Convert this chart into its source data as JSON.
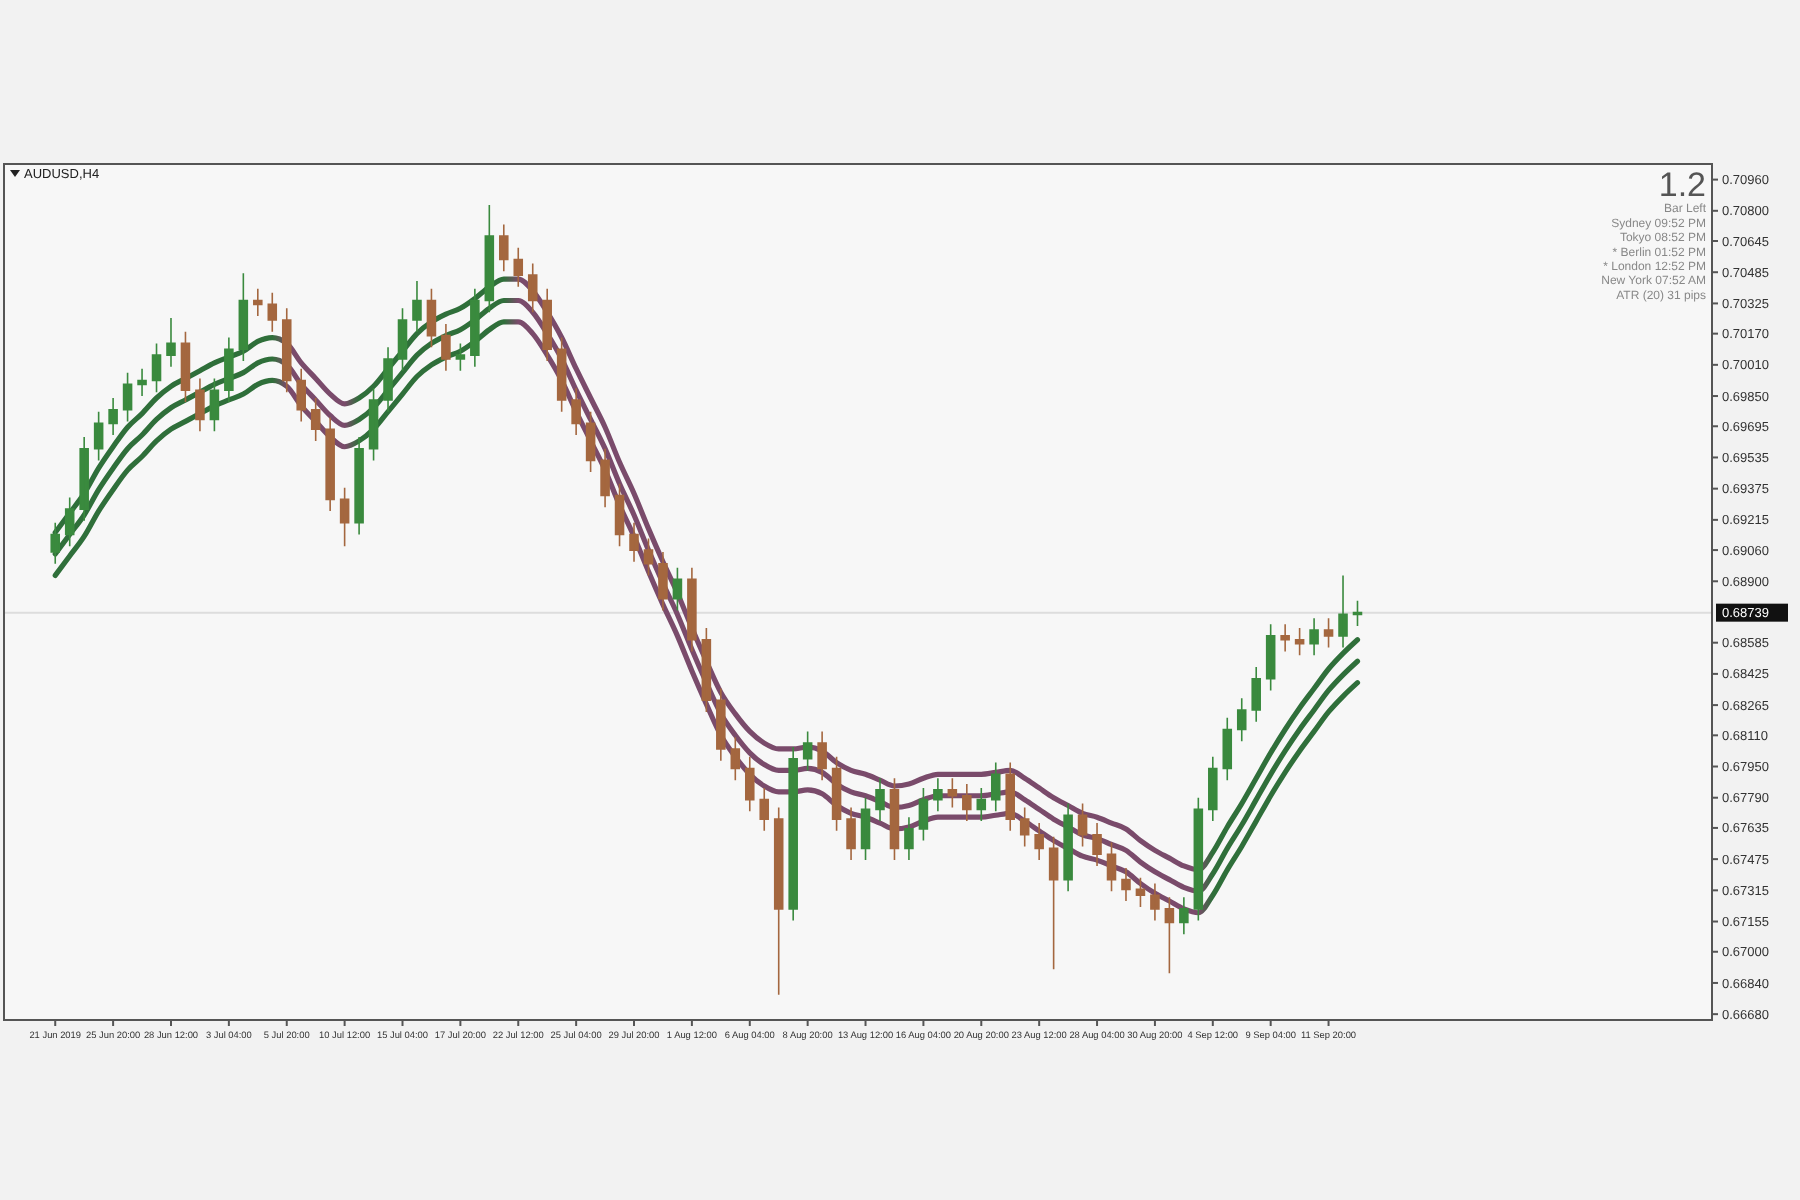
{
  "chart_data": {
    "type": "candlestick",
    "title": "AUDUSD,H4",
    "annotations": [
      "1.2",
      "Bar Left",
      "Sydney 09:52 PM",
      "Tokyo 08:52 PM",
      "* Berlin 01:52 PM",
      "* London 12:52 PM",
      "New York 07:52 AM",
      "ATR (20) 31 pips"
    ],
    "categories": [
      "21 Jun 2019",
      null,
      null,
      null,
      "25 Jun 20:00",
      null,
      null,
      null,
      "28 Jun 12:00",
      null,
      null,
      null,
      "3 Jul 04:00",
      null,
      null,
      null,
      "5 Jul 20:00",
      null,
      null,
      null,
      "10 Jul 12:00",
      null,
      null,
      null,
      "15 Jul 04:00",
      null,
      null,
      null,
      "17 Jul 20:00",
      null,
      null,
      null,
      "22 Jul 12:00",
      null,
      null,
      null,
      "25 Jul 04:00",
      null,
      null,
      null,
      "29 Jul 20:00",
      null,
      null,
      null,
      "1 Aug 12:00",
      null,
      null,
      null,
      "6 Aug 04:00",
      null,
      null,
      null,
      "8 Aug 20:00",
      null,
      null,
      null,
      "13 Aug 12:00",
      null,
      null,
      null,
      "16 Aug 04:00",
      null,
      null,
      null,
      "20 Aug 20:00",
      null,
      null,
      null,
      "23 Aug 12:00",
      null,
      null,
      null,
      "28 Aug 04:00",
      null,
      null,
      null,
      "30 Aug 20:00",
      null,
      null,
      null,
      "4 Sep 12:00",
      null,
      null,
      null,
      "9 Sep 04:00",
      null,
      null,
      null,
      "11 Sep 20:00",
      null,
      null,
      null,
      null,
      null,
      null,
      null,
      null,
      null,
      null,
      null,
      null,
      null,
      null,
      null,
      null,
      null,
      null,
      null,
      null,
      null,
      null,
      null,
      null,
      null,
      null
    ],
    "ylim": [
      0.6665,
      0.7104
    ],
    "yticks": [
      {
        "value": 0.7096,
        "label": "0.70960"
      },
      {
        "value": 0.708,
        "label": "0.70800"
      },
      {
        "value": 0.70645,
        "label": "0.70645"
      },
      {
        "value": 0.70485,
        "label": "0.70485"
      },
      {
        "value": 0.70325,
        "label": "0.70325"
      },
      {
        "value": 0.7017,
        "label": "0.70170"
      },
      {
        "value": 0.7001,
        "label": "0.70010"
      },
      {
        "value": 0.6985,
        "label": "0.69850"
      },
      {
        "value": 0.69695,
        "label": "0.69695"
      },
      {
        "value": 0.69535,
        "label": "0.69535"
      },
      {
        "value": 0.69375,
        "label": "0.69375"
      },
      {
        "value": 0.69215,
        "label": "0.69215"
      },
      {
        "value": 0.6906,
        "label": "0.69060"
      },
      {
        "value": 0.689,
        "label": "0.68900"
      },
      {
        "value": 0.68585,
        "label": "0.68585"
      },
      {
        "value": 0.68425,
        "label": "0.68425"
      },
      {
        "value": 0.68265,
        "label": "0.68265"
      },
      {
        "value": 0.6811,
        "label": "0.68110"
      },
      {
        "value": 0.6795,
        "label": "0.67950"
      },
      {
        "value": 0.6779,
        "label": "0.67790"
      },
      {
        "value": 0.67635,
        "label": "0.67635"
      },
      {
        "value": 0.67475,
        "label": "0.67475"
      },
      {
        "value": 0.67315,
        "label": "0.67315"
      },
      {
        "value": 0.67155,
        "label": "0.67155"
      },
      {
        "value": 0.67,
        "label": "0.67000"
      },
      {
        "value": 0.6684,
        "label": "0.66840"
      },
      {
        "value": 0.6668,
        "label": "0.66680"
      }
    ],
    "grid": false,
    "legend": false,
    "ref_lines": [
      {
        "axis": "y",
        "value": 0.68739,
        "label": "0.68739",
        "color": "#dddddd"
      }
    ],
    "series": [
      {
        "ohlc": [
          [
            0.6905,
            0.692,
            0.6899,
            0.6914
          ],
          [
            0.6914,
            0.6933,
            0.6908,
            0.6927
          ],
          [
            0.6927,
            0.6964,
            0.6921,
            0.6958
          ],
          [
            0.6958,
            0.6977,
            0.6952,
            0.6971
          ],
          [
            0.6971,
            0.6984,
            0.6965,
            0.6978
          ],
          [
            0.6978,
            0.6997,
            0.6972,
            0.6991
          ],
          [
            0.6991,
            0.6999,
            0.6985,
            0.6993
          ],
          [
            0.6993,
            0.7012,
            0.6987,
            0.7006
          ],
          [
            0.7006,
            0.7025,
            0.7,
            0.7012
          ],
          [
            0.7012,
            0.7018,
            0.6982,
            0.6988
          ],
          [
            0.6988,
            0.6994,
            0.6967,
            0.6973
          ],
          [
            0.6973,
            0.6994,
            0.6967,
            0.6988
          ],
          [
            0.6988,
            0.7015,
            0.6982,
            0.7009
          ],
          [
            0.7009,
            0.7048,
            0.7003,
            0.7034
          ],
          [
            0.7034,
            0.704,
            0.7026,
            0.7032
          ],
          [
            0.7032,
            0.7038,
            0.7018,
            0.7024
          ],
          [
            0.7024,
            0.703,
            0.6987,
            0.6993
          ],
          [
            0.6993,
            0.6999,
            0.6972,
            0.6978
          ],
          [
            0.6978,
            0.6984,
            0.6962,
            0.6968
          ],
          [
            0.6968,
            0.6974,
            0.6926,
            0.6932
          ],
          [
            0.6932,
            0.6938,
            0.6908,
            0.692
          ],
          [
            0.692,
            0.6964,
            0.6914,
            0.6958
          ],
          [
            0.6958,
            0.6989,
            0.6952,
            0.6983
          ],
          [
            0.6983,
            0.701,
            0.6977,
            0.7004
          ],
          [
            0.7004,
            0.703,
            0.6998,
            0.7024
          ],
          [
            0.7024,
            0.7044,
            0.7018,
            0.7034
          ],
          [
            0.7034,
            0.704,
            0.701,
            0.7016
          ],
          [
            0.7016,
            0.7022,
            0.6998,
            0.7004
          ],
          [
            0.7004,
            0.7012,
            0.6998,
            0.7006
          ],
          [
            0.7006,
            0.704,
            0.7,
            0.7034
          ],
          [
            0.7034,
            0.7083,
            0.7028,
            0.7067
          ],
          [
            0.7067,
            0.7073,
            0.7049,
            0.7055
          ],
          [
            0.7055,
            0.7061,
            0.7041,
            0.7047
          ],
          [
            0.7047,
            0.7053,
            0.7028,
            0.7034
          ],
          [
            0.7034,
            0.704,
            0.7003,
            0.7009
          ],
          [
            0.7009,
            0.7015,
            0.6977,
            0.6983
          ],
          [
            0.6983,
            0.6989,
            0.6965,
            0.6971
          ],
          [
            0.6971,
            0.6977,
            0.6946,
            0.6952
          ],
          [
            0.6952,
            0.6958,
            0.6928,
            0.6934
          ],
          [
            0.6934,
            0.694,
            0.6908,
            0.6914
          ],
          [
            0.6914,
            0.692,
            0.69,
            0.6906
          ],
          [
            0.6906,
            0.6912,
            0.6893,
            0.6899
          ],
          [
            0.6899,
            0.6905,
            0.6875,
            0.6881
          ],
          [
            0.6881,
            0.6897,
            0.6875,
            0.6891
          ],
          [
            0.6891,
            0.6897,
            0.6854,
            0.686
          ],
          [
            0.686,
            0.6866,
            0.6823,
            0.6829
          ],
          [
            0.6829,
            0.6835,
            0.6798,
            0.6804
          ],
          [
            0.6804,
            0.681,
            0.6788,
            0.6794
          ],
          [
            0.6794,
            0.68,
            0.6772,
            0.6778
          ],
          [
            0.6778,
            0.6784,
            0.6762,
            0.6768
          ],
          [
            0.6768,
            0.6774,
            0.6678,
            0.6722
          ],
          [
            0.6722,
            0.6805,
            0.6716,
            0.6799
          ],
          [
            0.6799,
            0.6813,
            0.6793,
            0.6807
          ],
          [
            0.6807,
            0.6813,
            0.6788,
            0.6794
          ],
          [
            0.6794,
            0.68,
            0.6762,
            0.6768
          ],
          [
            0.6768,
            0.6774,
            0.6747,
            0.6753
          ],
          [
            0.6753,
            0.6779,
            0.6747,
            0.6773
          ],
          [
            0.6773,
            0.6789,
            0.6767,
            0.6783
          ],
          [
            0.6783,
            0.6789,
            0.6747,
            0.6753
          ],
          [
            0.6753,
            0.6769,
            0.6747,
            0.6763
          ],
          [
            0.6763,
            0.6784,
            0.6757,
            0.6778
          ],
          [
            0.6778,
            0.6789,
            0.6772,
            0.6783
          ],
          [
            0.6783,
            0.6789,
            0.6774,
            0.678
          ],
          [
            0.678,
            0.6786,
            0.6767,
            0.6773
          ],
          [
            0.6773,
            0.6784,
            0.6767,
            0.6778
          ],
          [
            0.6778,
            0.6797,
            0.6772,
            0.6791
          ],
          [
            0.6791,
            0.6797,
            0.6762,
            0.6768
          ],
          [
            0.6768,
            0.6774,
            0.6754,
            0.676
          ],
          [
            0.676,
            0.6766,
            0.6747,
            0.6753
          ],
          [
            0.6753,
            0.6759,
            0.6691,
            0.6737
          ],
          [
            0.6737,
            0.6776,
            0.6731,
            0.677
          ],
          [
            0.677,
            0.6776,
            0.6754,
            0.676
          ],
          [
            0.676,
            0.6766,
            0.6744,
            0.675
          ],
          [
            0.675,
            0.6756,
            0.6731,
            0.6737
          ],
          [
            0.6737,
            0.6743,
            0.6726,
            0.6732
          ],
          [
            0.6732,
            0.6738,
            0.6723,
            0.6729
          ],
          [
            0.6729,
            0.6735,
            0.6716,
            0.6722
          ],
          [
            0.6722,
            0.6728,
            0.6689,
            0.6715
          ],
          [
            0.6715,
            0.6728,
            0.6709,
            0.6722
          ],
          [
            0.6722,
            0.6779,
            0.6716,
            0.6773
          ],
          [
            0.6773,
            0.68,
            0.6767,
            0.6794
          ],
          [
            0.6794,
            0.682,
            0.6788,
            0.6814
          ],
          [
            0.6814,
            0.683,
            0.6808,
            0.6824
          ],
          [
            0.6824,
            0.6846,
            0.6818,
            0.684
          ],
          [
            0.684,
            0.6868,
            0.6834,
            0.6862
          ],
          [
            0.6862,
            0.6868,
            0.6854,
            0.686
          ],
          [
            0.686,
            0.6866,
            0.6852,
            0.6858
          ],
          [
            0.6858,
            0.6871,
            0.6852,
            0.6865
          ],
          [
            0.6865,
            0.6871,
            0.6856,
            0.6862
          ],
          [
            0.6862,
            0.6893,
            0.6856,
            0.6873
          ],
          [
            0.6873,
            0.688,
            0.6867,
            0.6874
          ],
          null,
          null,
          null,
          null,
          null,
          null,
          null,
          null,
          null,
          null,
          null,
          null,
          null,
          null,
          null,
          null,
          null,
          null,
          null,
          null,
          null,
          null,
          null,
          null
        ],
        "colors": [
          "#3a8a3e",
          "#3a8a3e",
          "#3a8a3e",
          "#3a8a3e",
          "#3a8a3e",
          "#3a8a3e",
          "#3a8a3e",
          "#3a8a3e",
          "#3a8a3e",
          "#a4673f",
          "#a4673f",
          "#3a8a3e",
          "#3a8a3e",
          "#3a8a3e",
          "#a4673f",
          "#a4673f",
          "#a4673f",
          "#a4673f",
          "#a4673f",
          "#a4673f",
          "#a4673f",
          "#3a8a3e",
          "#3a8a3e",
          "#3a8a3e",
          "#3a8a3e",
          "#3a8a3e",
          "#a4673f",
          "#a4673f",
          "#3a8a3e",
          "#3a8a3e",
          "#3a8a3e",
          "#a4673f",
          "#a4673f",
          "#a4673f",
          "#a4673f",
          "#a4673f",
          "#a4673f",
          "#a4673f",
          "#a4673f",
          "#a4673f",
          "#a4673f",
          "#a4673f",
          "#a4673f",
          "#3a8a3e",
          "#a4673f",
          "#a4673f",
          "#a4673f",
          "#a4673f",
          "#a4673f",
          "#a4673f",
          "#a4673f",
          "#3a8a3e",
          "#3a8a3e",
          "#a4673f",
          "#a4673f",
          "#a4673f",
          "#3a8a3e",
          "#3a8a3e",
          "#a4673f",
          "#3a8a3e",
          "#3a8a3e",
          "#3a8a3e",
          "#a4673f",
          "#a4673f",
          "#3a8a3e",
          "#3a8a3e",
          "#a4673f",
          "#a4673f",
          "#a4673f",
          "#a4673f",
          "#3a8a3e",
          "#a4673f",
          "#a4673f",
          "#a4673f",
          "#a4673f",
          "#a4673f",
          "#a4673f",
          "#a4673f",
          "#3a8a3e",
          "#3a8a3e",
          "#3a8a3e",
          "#3a8a3e",
          "#3a8a3e",
          "#3a8a3e",
          "#3a8a3e",
          "#a4673f",
          "#a4673f",
          "#3a8a3e",
          "#a4673f",
          "#3a8a3e",
          "#3a8a3e",
          null,
          null,
          null,
          null,
          null,
          null,
          null,
          null,
          null,
          null,
          null,
          null,
          null,
          null,
          null,
          null,
          null,
          null,
          null,
          null,
          null,
          null,
          null,
          null
        ]
      },
      {
        "type": "line",
        "values": [
          0.6915,
          0.6925,
          0.6935,
          0.6948,
          0.6959,
          0.6969,
          0.6976,
          0.6984,
          0.699,
          0.6994,
          0.6998,
          0.7002,
          0.7005,
          0.7008,
          0.7013,
          0.7015,
          0.7012,
          0.7002,
          0.6994,
          0.6986,
          0.6981,
          0.6984,
          0.699,
          0.6999,
          0.7008,
          0.7017,
          0.7023,
          0.7027,
          0.703,
          0.7035,
          0.7041,
          0.7045,
          0.7045,
          0.7039,
          0.7028,
          0.7015,
          0.6999,
          0.6984,
          0.6969,
          0.6951,
          0.6935,
          0.6917,
          0.69,
          0.6884,
          0.6866,
          0.6849,
          0.6833,
          0.6822,
          0.6813,
          0.6807,
          0.6804,
          0.6804,
          0.6805,
          0.6803,
          0.6797,
          0.6793,
          0.6791,
          0.6788,
          0.6785,
          0.6786,
          0.6789,
          0.6791,
          0.6791,
          0.6791,
          0.6791,
          0.6792,
          0.6793,
          0.6789,
          0.6784,
          0.6779,
          0.6775,
          0.6771,
          0.6769,
          0.6766,
          0.6763,
          0.6757,
          0.6752,
          0.6748,
          0.6744,
          0.6742,
          0.6751,
          0.6764,
          0.6776,
          0.6789,
          0.6802,
          0.6814,
          0.6825,
          0.6835,
          0.6845,
          0.6853,
          0.686,
          null,
          null,
          null,
          null,
          null,
          null,
          null,
          null,
          null,
          null,
          null,
          null,
          null,
          null,
          null,
          null,
          null,
          null,
          null,
          null,
          null,
          null,
          null,
          null
        ],
        "colors": [
          "#2f6f3a",
          "#2f6f3a",
          "#2f6f3a",
          "#2f6f3a",
          "#2f6f3a",
          "#2f6f3a",
          "#2f6f3a",
          "#2f6f3a",
          "#2f6f3a",
          "#2f6f3a",
          "#2f6f3a",
          "#2f6f3a",
          "#2f6f3a",
          "#2f6f3a",
          "#2f6f3a",
          "#2f6f3a",
          "#7a4b6b",
          "#7a4b6b",
          "#7a4b6b",
          "#7a4b6b",
          "#7a4b6b",
          "#2f6f3a",
          "#2f6f3a",
          "#2f6f3a",
          "#2f6f3a",
          "#2f6f3a",
          "#2f6f3a",
          "#2f6f3a",
          "#2f6f3a",
          "#2f6f3a",
          "#2f6f3a",
          "#2f6f3a",
          "#7a4b6b",
          "#7a4b6b",
          "#7a4b6b",
          "#7a4b6b",
          "#7a4b6b",
          "#7a4b6b",
          "#7a4b6b",
          "#7a4b6b",
          "#7a4b6b",
          "#7a4b6b",
          "#7a4b6b",
          "#7a4b6b",
          "#7a4b6b",
          "#7a4b6b",
          "#7a4b6b",
          "#7a4b6b",
          "#7a4b6b",
          "#7a4b6b",
          "#7a4b6b",
          "#7a4b6b",
          "#7a4b6b",
          "#7a4b6b",
          "#7a4b6b",
          "#7a4b6b",
          "#7a4b6b",
          "#7a4b6b",
          "#7a4b6b",
          "#7a4b6b",
          "#7a4b6b",
          "#7a4b6b",
          "#7a4b6b",
          "#7a4b6b",
          "#7a4b6b",
          "#7a4b6b",
          "#7a4b6b",
          "#7a4b6b",
          "#7a4b6b",
          "#7a4b6b",
          "#7a4b6b",
          "#7a4b6b",
          "#7a4b6b",
          "#7a4b6b",
          "#7a4b6b",
          "#7a4b6b",
          "#7a4b6b",
          "#7a4b6b",
          "#7a4b6b",
          "#7a4b6b",
          "#2f6f3a",
          "#2f6f3a",
          "#2f6f3a",
          "#2f6f3a",
          "#2f6f3a",
          "#2f6f3a",
          "#2f6f3a",
          "#2f6f3a",
          "#2f6f3a",
          "#2f6f3a",
          "#2f6f3a",
          null,
          null,
          null,
          null,
          null,
          null,
          null,
          null,
          null,
          null,
          null,
          null,
          null,
          null,
          null,
          null,
          null,
          null,
          null,
          null,
          null,
          null,
          null,
          null
        ]
      },
      {
        "type": "line",
        "values": [
          0.6904,
          0.6914,
          0.6924,
          0.6937,
          0.6948,
          0.6958,
          0.6965,
          0.6973,
          0.6979,
          0.6983,
          0.6987,
          0.6991,
          0.6994,
          0.6997,
          0.7002,
          0.7004,
          0.7001,
          0.6991,
          0.6983,
          0.6975,
          0.697,
          0.6973,
          0.6979,
          0.6988,
          0.6997,
          0.7006,
          0.7012,
          0.7016,
          0.7019,
          0.7024,
          0.703,
          0.7034,
          0.7034,
          0.7028,
          0.7017,
          0.7004,
          0.6988,
          0.6973,
          0.6958,
          0.694,
          0.6924,
          0.6906,
          0.6889,
          0.6873,
          0.6855,
          0.6838,
          0.6822,
          0.6811,
          0.6802,
          0.6796,
          0.6793,
          0.6793,
          0.6794,
          0.6792,
          0.6786,
          0.6782,
          0.678,
          0.6777,
          0.6774,
          0.6775,
          0.6778,
          0.678,
          0.678,
          0.678,
          0.678,
          0.6781,
          0.6782,
          0.6778,
          0.6773,
          0.6768,
          0.6764,
          0.676,
          0.6758,
          0.6755,
          0.6752,
          0.6746,
          0.6741,
          0.6737,
          0.6733,
          0.6731,
          0.674,
          0.6753,
          0.6765,
          0.6778,
          0.6791,
          0.6803,
          0.6814,
          0.6824,
          0.6834,
          0.6842,
          0.6849,
          null,
          null,
          null,
          null,
          null,
          null,
          null,
          null,
          null,
          null,
          null,
          null,
          null,
          null,
          null,
          null,
          null,
          null,
          null,
          null,
          null,
          null,
          null,
          null
        ],
        "colors": [
          "#2f6f3a",
          "#2f6f3a",
          "#2f6f3a",
          "#2f6f3a",
          "#2f6f3a",
          "#2f6f3a",
          "#2f6f3a",
          "#2f6f3a",
          "#2f6f3a",
          "#2f6f3a",
          "#2f6f3a",
          "#2f6f3a",
          "#2f6f3a",
          "#2f6f3a",
          "#2f6f3a",
          "#2f6f3a",
          "#7a4b6b",
          "#7a4b6b",
          "#7a4b6b",
          "#7a4b6b",
          "#7a4b6b",
          "#2f6f3a",
          "#2f6f3a",
          "#2f6f3a",
          "#2f6f3a",
          "#2f6f3a",
          "#2f6f3a",
          "#2f6f3a",
          "#2f6f3a",
          "#2f6f3a",
          "#2f6f3a",
          "#2f6f3a",
          "#7a4b6b",
          "#7a4b6b",
          "#7a4b6b",
          "#7a4b6b",
          "#7a4b6b",
          "#7a4b6b",
          "#7a4b6b",
          "#7a4b6b",
          "#7a4b6b",
          "#7a4b6b",
          "#7a4b6b",
          "#7a4b6b",
          "#7a4b6b",
          "#7a4b6b",
          "#7a4b6b",
          "#7a4b6b",
          "#7a4b6b",
          "#7a4b6b",
          "#7a4b6b",
          "#7a4b6b",
          "#7a4b6b",
          "#7a4b6b",
          "#7a4b6b",
          "#7a4b6b",
          "#7a4b6b",
          "#7a4b6b",
          "#7a4b6b",
          "#7a4b6b",
          "#7a4b6b",
          "#7a4b6b",
          "#7a4b6b",
          "#7a4b6b",
          "#7a4b6b",
          "#7a4b6b",
          "#7a4b6b",
          "#7a4b6b",
          "#7a4b6b",
          "#7a4b6b",
          "#7a4b6b",
          "#7a4b6b",
          "#7a4b6b",
          "#7a4b6b",
          "#7a4b6b",
          "#7a4b6b",
          "#7a4b6b",
          "#7a4b6b",
          "#7a4b6b",
          "#7a4b6b",
          "#2f6f3a",
          "#2f6f3a",
          "#2f6f3a",
          "#2f6f3a",
          "#2f6f3a",
          "#2f6f3a",
          "#2f6f3a",
          "#2f6f3a",
          "#2f6f3a",
          "#2f6f3a",
          "#2f6f3a",
          null,
          null,
          null,
          null,
          null,
          null,
          null,
          null,
          null,
          null,
          null,
          null,
          null,
          null,
          null,
          null,
          null,
          null,
          null,
          null,
          null,
          null,
          null,
          null
        ]
      },
      {
        "type": "line",
        "values": [
          0.6893,
          0.6903,
          0.6913,
          0.6926,
          0.6937,
          0.6947,
          0.6954,
          0.6962,
          0.6968,
          0.6972,
          0.6976,
          0.698,
          0.6983,
          0.6986,
          0.6991,
          0.6993,
          0.699,
          0.698,
          0.6972,
          0.6964,
          0.6959,
          0.6962,
          0.6968,
          0.6977,
          0.6986,
          0.6995,
          0.7001,
          0.7005,
          0.7008,
          0.7013,
          0.7019,
          0.7023,
          0.7023,
          0.7017,
          0.7006,
          0.6993,
          0.6977,
          0.6962,
          0.6947,
          0.6929,
          0.6913,
          0.6895,
          0.6878,
          0.6862,
          0.6844,
          0.6827,
          0.6811,
          0.68,
          0.6791,
          0.6785,
          0.6782,
          0.6782,
          0.6783,
          0.6781,
          0.6775,
          0.6771,
          0.6769,
          0.6766,
          0.6763,
          0.6764,
          0.6767,
          0.6769,
          0.6769,
          0.6769,
          0.6769,
          0.677,
          0.6771,
          0.6767,
          0.6762,
          0.6757,
          0.6753,
          0.6749,
          0.6747,
          0.6744,
          0.6741,
          0.6735,
          0.673,
          0.6726,
          0.6722,
          0.672,
          0.6729,
          0.6742,
          0.6754,
          0.6767,
          0.678,
          0.6792,
          0.6803,
          0.6813,
          0.6823,
          0.6831,
          0.6838,
          null,
          null,
          null,
          null,
          null,
          null,
          null,
          null,
          null,
          null,
          null,
          null,
          null,
          null,
          null,
          null,
          null,
          null,
          null,
          null,
          null,
          null,
          null,
          null
        ],
        "colors": [
          "#2f6f3a",
          "#2f6f3a",
          "#2f6f3a",
          "#2f6f3a",
          "#2f6f3a",
          "#2f6f3a",
          "#2f6f3a",
          "#2f6f3a",
          "#2f6f3a",
          "#2f6f3a",
          "#2f6f3a",
          "#2f6f3a",
          "#2f6f3a",
          "#2f6f3a",
          "#2f6f3a",
          "#2f6f3a",
          "#7a4b6b",
          "#7a4b6b",
          "#7a4b6b",
          "#7a4b6b",
          "#7a4b6b",
          "#2f6f3a",
          "#2f6f3a",
          "#2f6f3a",
          "#2f6f3a",
          "#2f6f3a",
          "#2f6f3a",
          "#2f6f3a",
          "#2f6f3a",
          "#2f6f3a",
          "#2f6f3a",
          "#2f6f3a",
          "#7a4b6b",
          "#7a4b6b",
          "#7a4b6b",
          "#7a4b6b",
          "#7a4b6b",
          "#7a4b6b",
          "#7a4b6b",
          "#7a4b6b",
          "#7a4b6b",
          "#7a4b6b",
          "#7a4b6b",
          "#7a4b6b",
          "#7a4b6b",
          "#7a4b6b",
          "#7a4b6b",
          "#7a4b6b",
          "#7a4b6b",
          "#7a4b6b",
          "#7a4b6b",
          "#7a4b6b",
          "#7a4b6b",
          "#7a4b6b",
          "#7a4b6b",
          "#7a4b6b",
          "#7a4b6b",
          "#7a4b6b",
          "#7a4b6b",
          "#7a4b6b",
          "#7a4b6b",
          "#7a4b6b",
          "#7a4b6b",
          "#7a4b6b",
          "#7a4b6b",
          "#7a4b6b",
          "#7a4b6b",
          "#7a4b6b",
          "#7a4b6b",
          "#7a4b6b",
          "#7a4b6b",
          "#7a4b6b",
          "#7a4b6b",
          "#7a4b6b",
          "#7a4b6b",
          "#7a4b6b",
          "#7a4b6b",
          "#7a4b6b",
          "#7a4b6b",
          "#7a4b6b",
          "#2f6f3a",
          "#2f6f3a",
          "#2f6f3a",
          "#2f6f3a",
          "#2f6f3a",
          "#2f6f3a",
          "#2f6f3a",
          "#2f6f3a",
          "#2f6f3a",
          "#2f6f3a",
          "#2f6f3a",
          null,
          null,
          null,
          null,
          null,
          null,
          null,
          null,
          null,
          null,
          null,
          null,
          null,
          null,
          null,
          null,
          null,
          null,
          null,
          null,
          null,
          null,
          null,
          null
        ]
      }
    ]
  }
}
